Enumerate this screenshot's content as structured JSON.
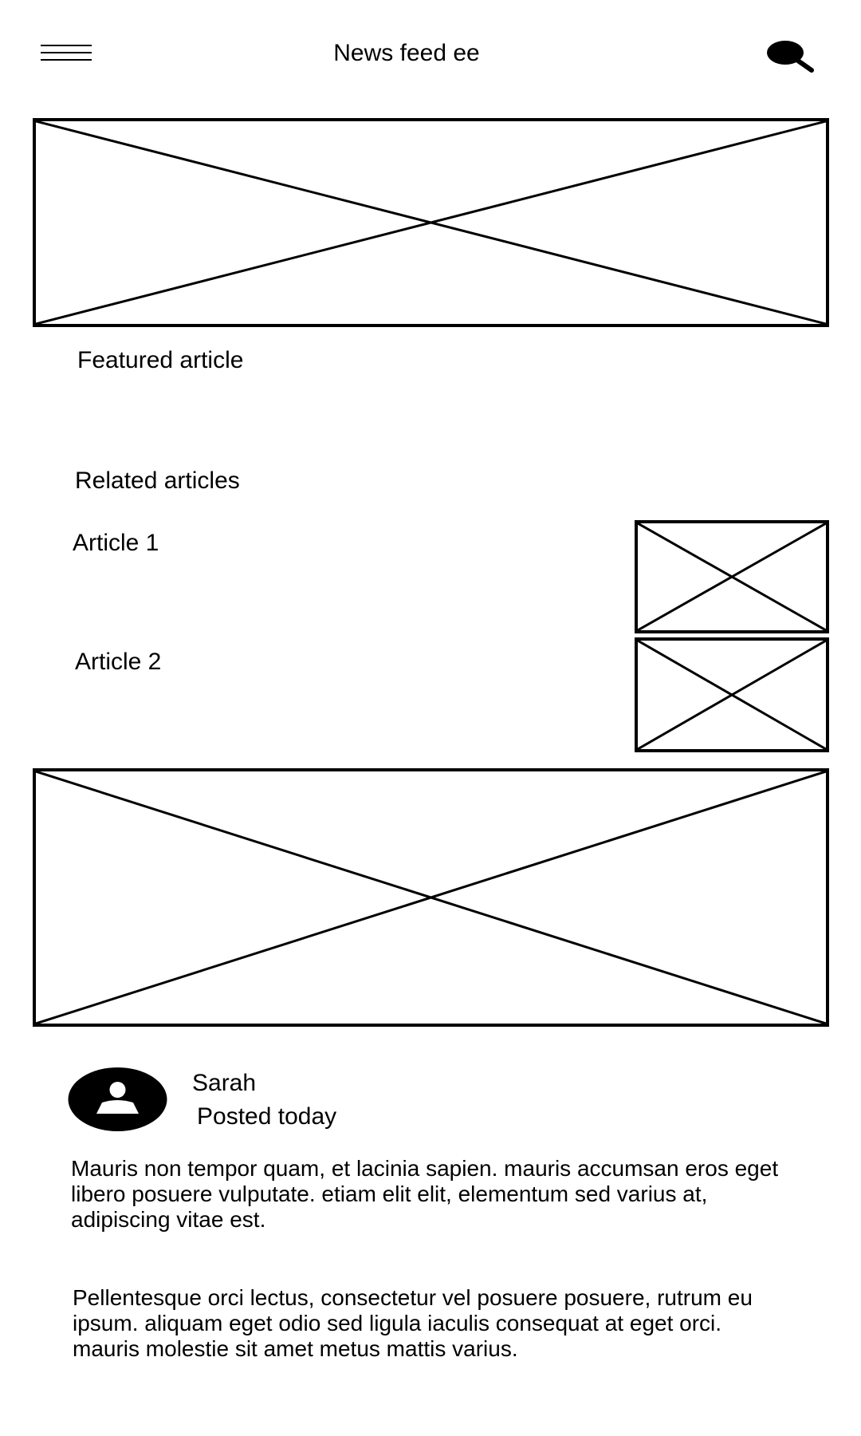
{
  "header": {
    "title": "News feed ee",
    "menu_icon": "hamburger-menu-icon",
    "search_icon": "search-icon"
  },
  "featured": {
    "image_icon": "image-placeholder-icon",
    "label": "Featured article"
  },
  "related": {
    "heading": "Related articles",
    "articles": [
      {
        "title": "Article 1",
        "image_icon": "image-placeholder-icon"
      },
      {
        "title": "Article 2",
        "image_icon": "image-placeholder-icon"
      }
    ]
  },
  "post": {
    "image_icon": "image-placeholder-icon",
    "author": "Sarah",
    "posted": "Posted today",
    "avatar_icon": "user-avatar-icon",
    "paragraphs": [
      "Mauris non tempor quam, et lacinia sapien. mauris accumsan eros eget libero posuere vulputate. etiam elit elit, elementum sed varius at, adipiscing vitae est.",
      "Pellentesque orci lectus, consectetur vel posuere posuere, rutrum eu ipsum. aliquam eget odio sed ligula iaculis consequat at eget orci. mauris molestie sit amet metus mattis varius."
    ]
  }
}
